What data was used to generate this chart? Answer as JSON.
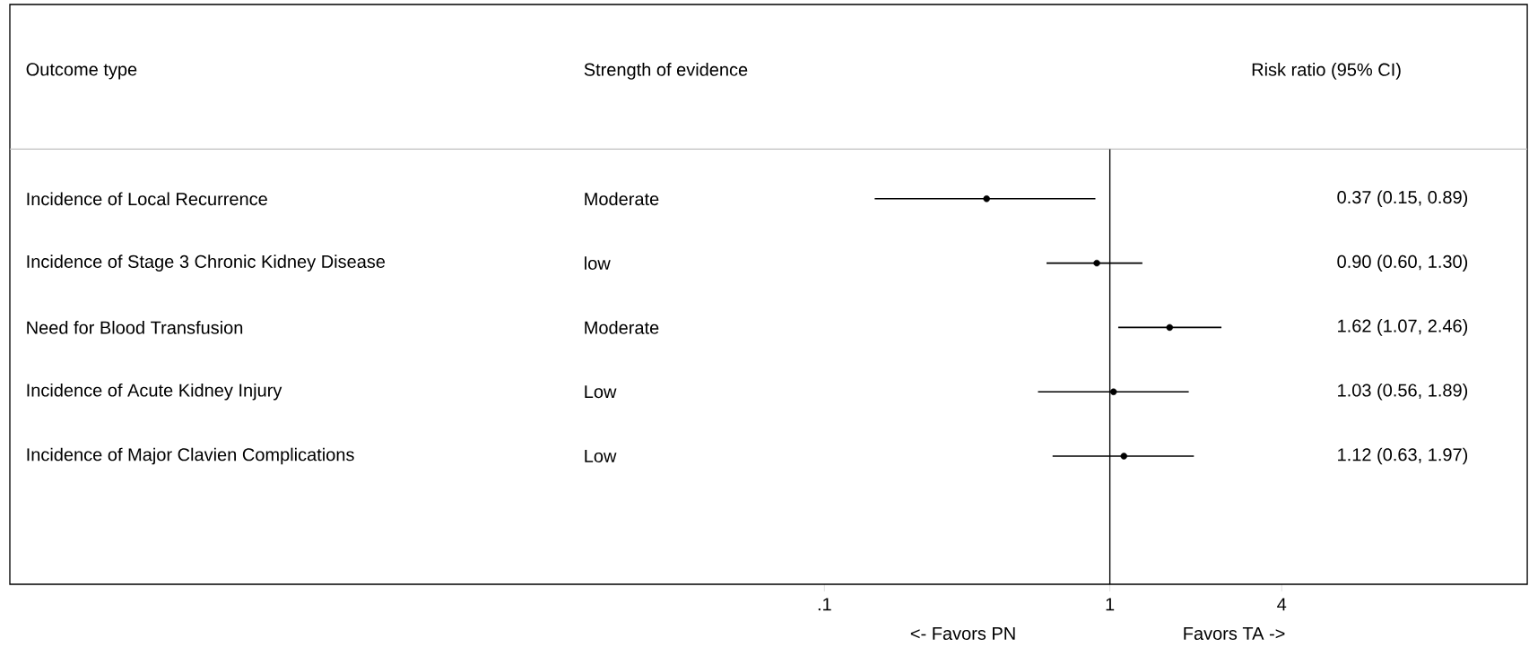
{
  "chart_data": {
    "type": "scatter",
    "orientation": "horizontal",
    "ylabel": "Outcome type",
    "categories": [
      "Incidence of Local Recurrence",
      "Incidence of Stage 3 Chronic Kidney Disease",
      "Need for Blood Transfusion",
      "Incidence of Acute Kidney Injury",
      "Incidence of Major Clavien Complications"
    ],
    "values": [
      0.37,
      0.9,
      1.62,
      1.03,
      1.12
    ],
    "errors": [
      [
        0.15,
        0.89
      ],
      [
        0.6,
        1.3
      ],
      [
        1.07,
        2.46
      ],
      [
        0.56,
        1.89
      ],
      [
        0.63,
        1.97
      ]
    ],
    "color": "#000000",
    "marker": "circle",
    "log": "x",
    "xlim": [
      0.00014,
      29
    ],
    "xticks": [
      {
        "value": 0.1,
        "label": ".1"
      },
      1,
      4
    ],
    "ref_lines": [
      {
        "axis": "x",
        "value": 1,
        "color": "#000000"
      }
    ],
    "annotations": [
      "Strength of evidence",
      "Moderate",
      "low",
      "Moderate",
      "Low",
      "Low",
      "Risk ratio (95% CI)",
      "<- Favors PN",
      "Favors TA ->",
      "0.37 (0.15, 0.89)",
      "0.90 (0.60, 1.30)",
      "1.62 (1.07, 2.46)",
      "1.03 (0.56, 1.89)",
      "1.12 (0.63, 1.97)"
    ]
  }
}
